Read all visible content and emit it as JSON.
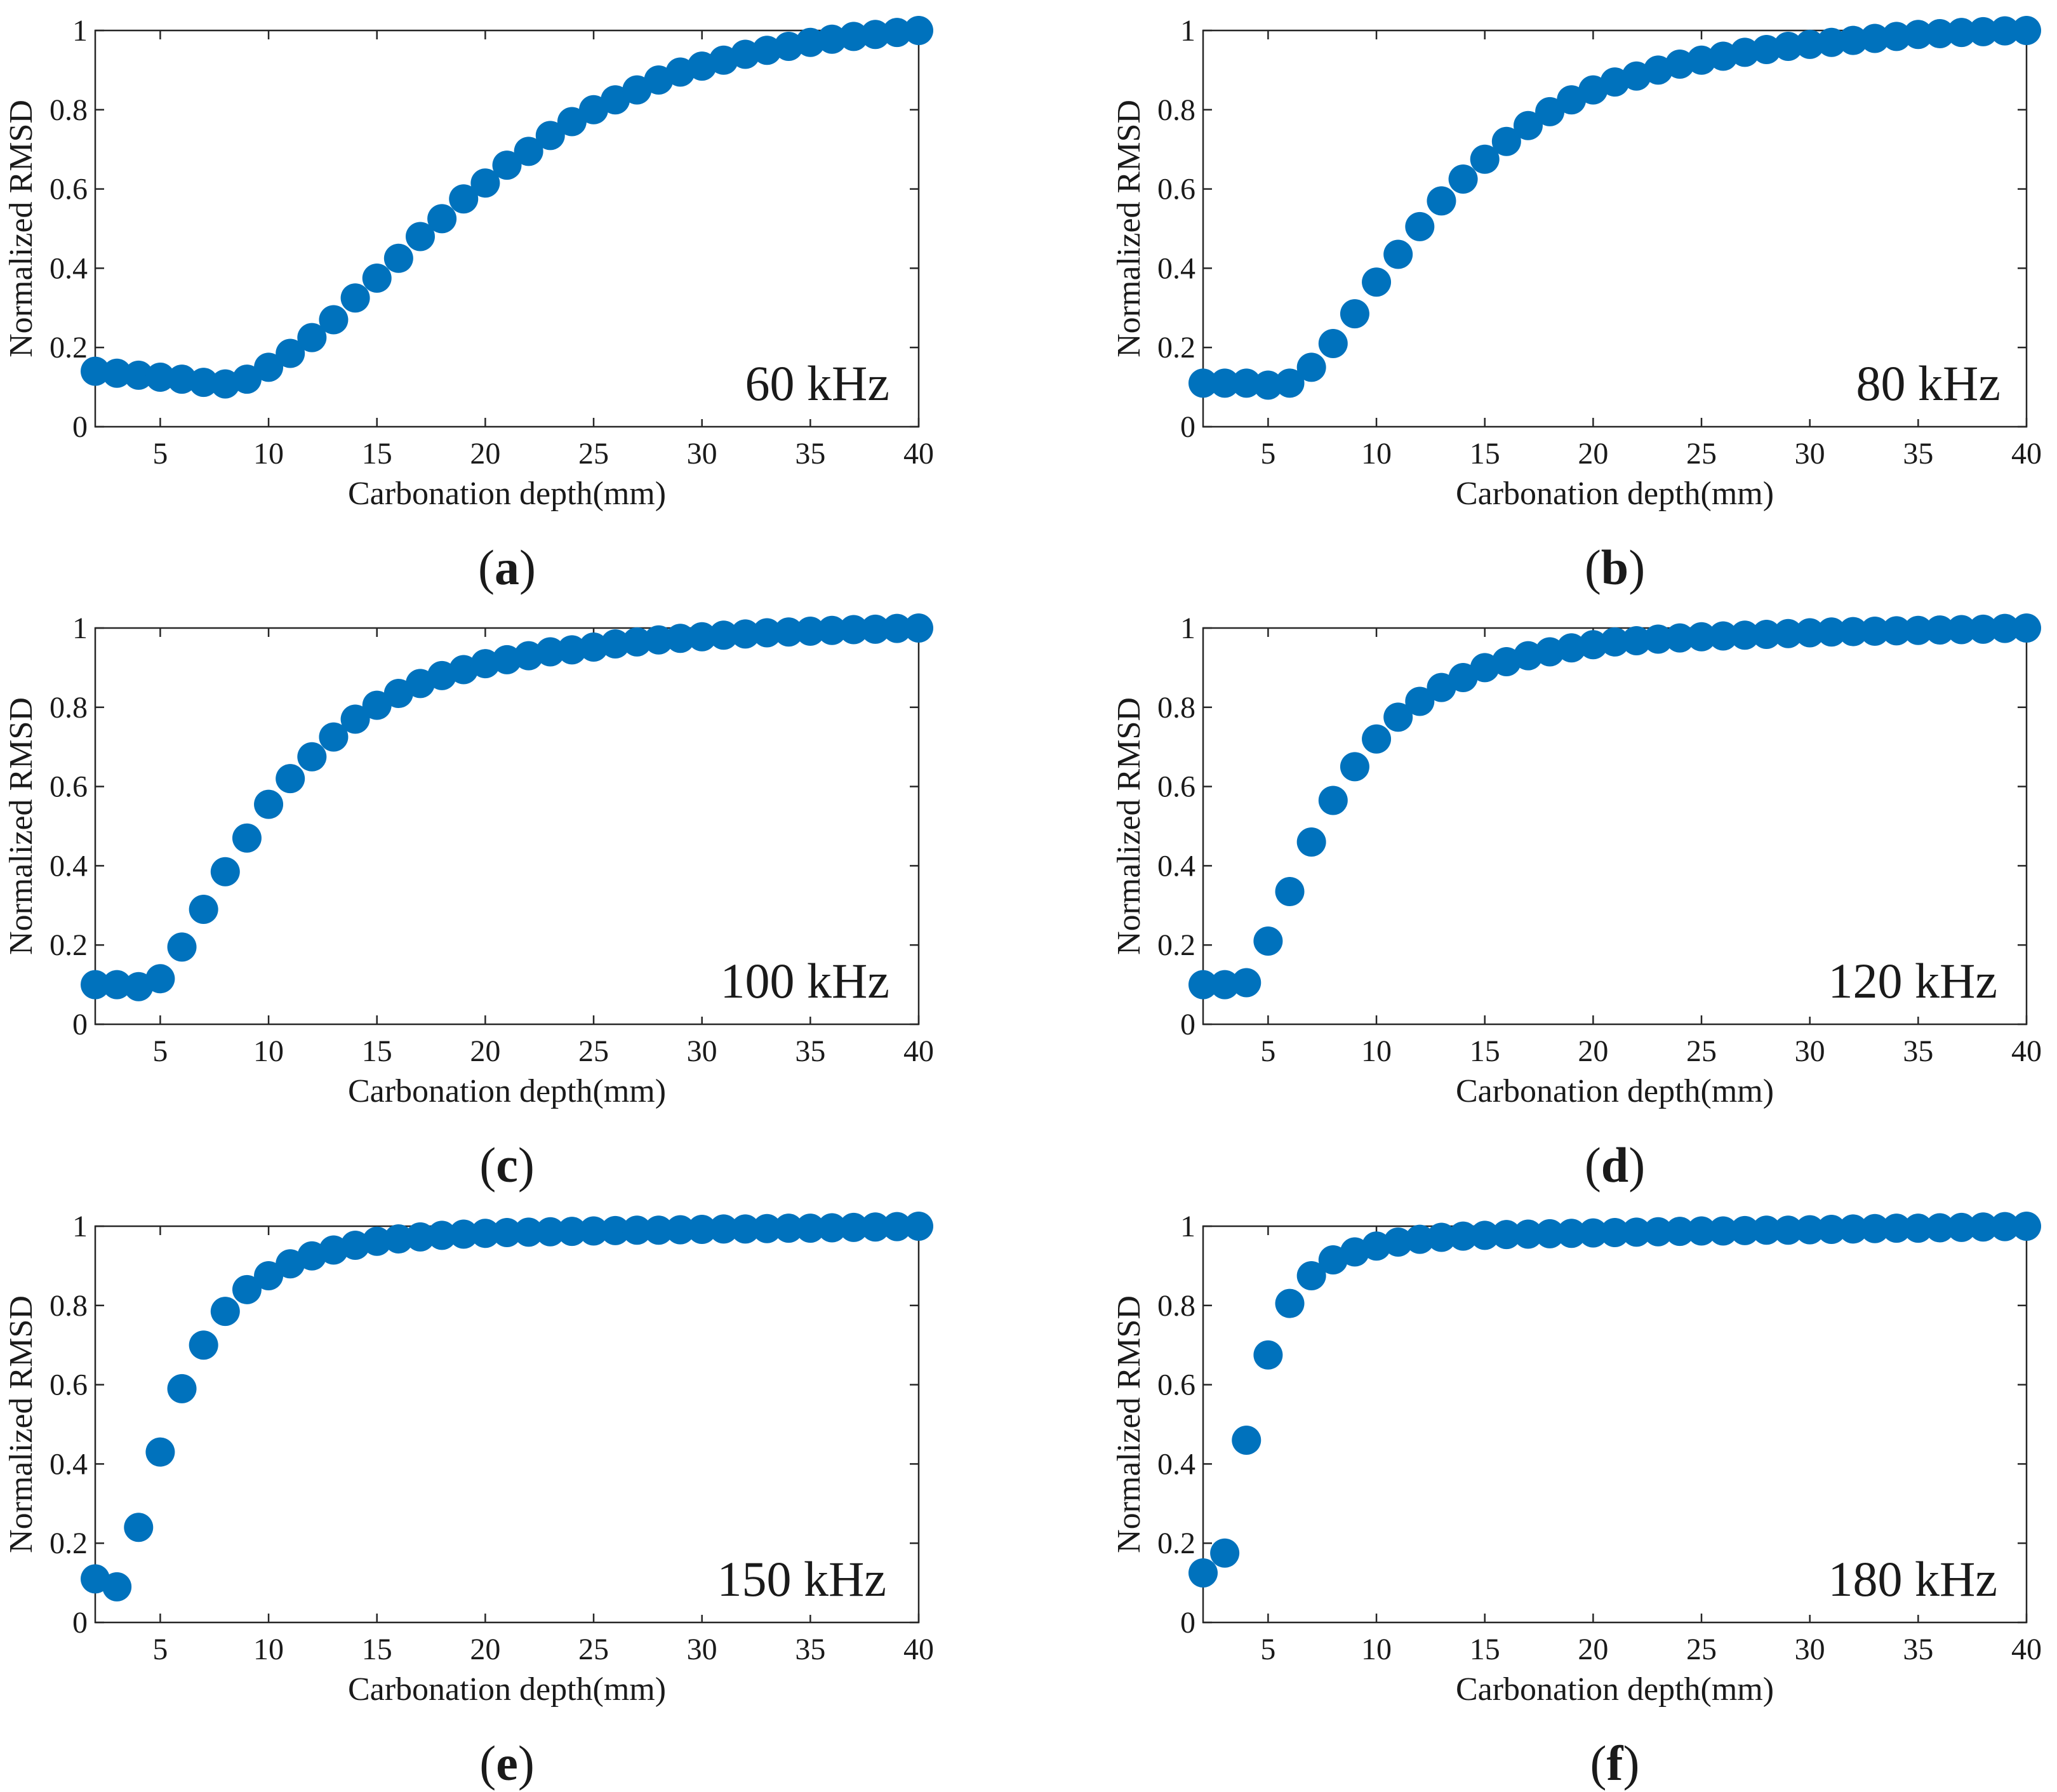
{
  "chart_data": [
    {
      "type": "scatter",
      "panel": "(a)",
      "panel_letter": "a",
      "annotation": "60 kHz",
      "xlabel": "Carbonation depth(mm)",
      "ylabel": "Normalized RMSD",
      "xlim": [
        2,
        40
      ],
      "ylim": [
        0,
        1
      ],
      "xticks": [
        5,
        10,
        15,
        20,
        25,
        30,
        35,
        40
      ],
      "yticks": [
        0,
        0.2,
        0.4,
        0.6,
        0.8,
        1
      ],
      "ytick_labels": [
        "0",
        "0.2",
        "0.4",
        "0.6",
        "0.8",
        "1"
      ],
      "marker_color": "#0072BD",
      "x": [
        2,
        3,
        4,
        5,
        6,
        7,
        8,
        9,
        10,
        11,
        12,
        13,
        14,
        15,
        16,
        17,
        18,
        19,
        20,
        21,
        22,
        23,
        24,
        25,
        26,
        27,
        28,
        29,
        30,
        31,
        32,
        33,
        34,
        35,
        36,
        37,
        38,
        39,
        40
      ],
      "y": [
        0.14,
        0.135,
        0.13,
        0.125,
        0.12,
        0.112,
        0.108,
        0.12,
        0.15,
        0.185,
        0.225,
        0.27,
        0.325,
        0.375,
        0.425,
        0.48,
        0.525,
        0.575,
        0.615,
        0.66,
        0.695,
        0.735,
        0.77,
        0.8,
        0.825,
        0.85,
        0.875,
        0.895,
        0.91,
        0.925,
        0.94,
        0.95,
        0.96,
        0.97,
        0.978,
        0.985,
        0.99,
        0.995,
        1.0
      ]
    },
    {
      "type": "scatter",
      "panel": "(b)",
      "panel_letter": "b",
      "annotation": "80 kHz",
      "xlabel": "Carbonation depth(mm)",
      "ylabel": "Normalized RMSD",
      "xlim": [
        2,
        40
      ],
      "ylim": [
        0,
        1
      ],
      "xticks": [
        5,
        10,
        15,
        20,
        25,
        30,
        35,
        40
      ],
      "yticks": [
        0,
        0.2,
        0.4,
        0.6,
        0.8,
        1
      ],
      "ytick_labels": [
        "0",
        "0.2",
        "0.4",
        "0.6",
        "0.8",
        "1"
      ],
      "marker_color": "#0072BD",
      "x": [
        2,
        3,
        4,
        5,
        6,
        7,
        8,
        9,
        10,
        11,
        12,
        13,
        14,
        15,
        16,
        17,
        18,
        19,
        20,
        21,
        22,
        23,
        24,
        25,
        26,
        27,
        28,
        29,
        30,
        31,
        32,
        33,
        34,
        35,
        36,
        37,
        38,
        39,
        40
      ],
      "y": [
        0.11,
        0.11,
        0.11,
        0.105,
        0.11,
        0.15,
        0.21,
        0.285,
        0.365,
        0.435,
        0.505,
        0.57,
        0.625,
        0.675,
        0.72,
        0.76,
        0.795,
        0.825,
        0.85,
        0.87,
        0.885,
        0.9,
        0.915,
        0.925,
        0.935,
        0.945,
        0.952,
        0.96,
        0.965,
        0.97,
        0.975,
        0.98,
        0.985,
        0.99,
        0.992,
        0.995,
        0.997,
        0.999,
        1.0
      ]
    },
    {
      "type": "scatter",
      "panel": "(c)",
      "panel_letter": "c",
      "annotation": "100 kHz",
      "xlabel": "Carbonation depth(mm)",
      "ylabel": "Normalized RMSD",
      "xlim": [
        2,
        40
      ],
      "ylim": [
        0,
        1
      ],
      "xticks": [
        5,
        10,
        15,
        20,
        25,
        30,
        35,
        40
      ],
      "yticks": [
        0,
        0.2,
        0.4,
        0.6,
        0.8,
        1
      ],
      "ytick_labels": [
        "0",
        "0.2",
        "0.4",
        "0.6",
        "0.8",
        "1"
      ],
      "marker_color": "#0072BD",
      "x": [
        2,
        3,
        4,
        5,
        6,
        7,
        8,
        9,
        10,
        11,
        12,
        13,
        14,
        15,
        16,
        17,
        18,
        19,
        20,
        21,
        22,
        23,
        24,
        25,
        26,
        27,
        28,
        29,
        30,
        31,
        32,
        33,
        34,
        35,
        36,
        37,
        38,
        39,
        40
      ],
      "y": [
        0.1,
        0.1,
        0.095,
        0.115,
        0.195,
        0.29,
        0.385,
        0.47,
        0.555,
        0.62,
        0.675,
        0.725,
        0.77,
        0.805,
        0.835,
        0.86,
        0.88,
        0.895,
        0.91,
        0.92,
        0.93,
        0.94,
        0.945,
        0.952,
        0.96,
        0.965,
        0.97,
        0.974,
        0.978,
        0.982,
        0.985,
        0.988,
        0.99,
        0.992,
        0.994,
        0.996,
        0.997,
        0.999,
        1.0
      ]
    },
    {
      "type": "scatter",
      "panel": "(d)",
      "panel_letter": "d",
      "annotation": "120 kHz",
      "xlabel": "Carbonation depth(mm)",
      "ylabel": "Normalized RMSD",
      "xlim": [
        2,
        40
      ],
      "ylim": [
        0,
        1
      ],
      "xticks": [
        5,
        10,
        15,
        20,
        25,
        30,
        35,
        40
      ],
      "yticks": [
        0,
        0.2,
        0.4,
        0.6,
        0.8,
        1
      ],
      "ytick_labels": [
        "0",
        "0.2",
        "0.4",
        "0.6",
        "0.8",
        "1"
      ],
      "marker_color": "#0072BD",
      "x": [
        2,
        3,
        4,
        5,
        6,
        7,
        8,
        9,
        10,
        11,
        12,
        13,
        14,
        15,
        16,
        17,
        18,
        19,
        20,
        21,
        22,
        23,
        24,
        25,
        26,
        27,
        28,
        29,
        30,
        31,
        32,
        33,
        34,
        35,
        36,
        37,
        38,
        39,
        40
      ],
      "y": [
        0.1,
        0.1,
        0.105,
        0.21,
        0.335,
        0.46,
        0.565,
        0.65,
        0.72,
        0.775,
        0.815,
        0.85,
        0.875,
        0.9,
        0.915,
        0.93,
        0.94,
        0.95,
        0.958,
        0.965,
        0.968,
        0.972,
        0.975,
        0.978,
        0.98,
        0.982,
        0.984,
        0.986,
        0.988,
        0.99,
        0.991,
        0.992,
        0.993,
        0.994,
        0.995,
        0.996,
        0.997,
        0.999,
        1.0
      ]
    },
    {
      "type": "scatter",
      "panel": "(e)",
      "panel_letter": "e",
      "annotation": "150 kHz",
      "xlabel": "Carbonation depth(mm)",
      "ylabel": "Normalized RMSD",
      "xlim": [
        2,
        40
      ],
      "ylim": [
        0,
        1
      ],
      "xticks": [
        5,
        10,
        15,
        20,
        25,
        30,
        35,
        40
      ],
      "yticks": [
        0,
        0.2,
        0.4,
        0.6,
        0.8,
        1
      ],
      "ytick_labels": [
        "0",
        "0.2",
        "0.4",
        "0.6",
        "0.8",
        "1"
      ],
      "marker_color": "#0072BD",
      "x": [
        2,
        3,
        4,
        5,
        6,
        7,
        8,
        9,
        10,
        11,
        12,
        13,
        14,
        15,
        16,
        17,
        18,
        19,
        20,
        21,
        22,
        23,
        24,
        25,
        26,
        27,
        28,
        29,
        30,
        31,
        32,
        33,
        34,
        35,
        36,
        37,
        38,
        39,
        40
      ],
      "y": [
        0.11,
        0.09,
        0.24,
        0.43,
        0.59,
        0.7,
        0.785,
        0.84,
        0.875,
        0.905,
        0.925,
        0.94,
        0.952,
        0.962,
        0.968,
        0.973,
        0.977,
        0.98,
        0.982,
        0.984,
        0.985,
        0.986,
        0.987,
        0.988,
        0.989,
        0.99,
        0.99,
        0.991,
        0.992,
        0.993,
        0.993,
        0.994,
        0.995,
        0.995,
        0.996,
        0.997,
        0.998,
        0.999,
        1.0
      ]
    },
    {
      "type": "scatter",
      "panel": "(f)",
      "panel_letter": "f",
      "annotation": "180 kHz",
      "xlabel": "Carbonation depth(mm)",
      "ylabel": "Normalized RMSD",
      "xlim": [
        2,
        40
      ],
      "ylim": [
        0,
        1
      ],
      "xticks": [
        5,
        10,
        15,
        20,
        25,
        30,
        35,
        40
      ],
      "yticks": [
        0,
        0.2,
        0.4,
        0.6,
        0.8,
        1
      ],
      "ytick_labels": [
        "0",
        "0.2",
        "0.4",
        "0.6",
        "0.8",
        "1"
      ],
      "marker_color": "#0072BD",
      "x": [
        2,
        3,
        4,
        5,
        6,
        7,
        8,
        9,
        10,
        11,
        12,
        13,
        14,
        15,
        16,
        17,
        18,
        19,
        20,
        21,
        22,
        23,
        24,
        25,
        26,
        27,
        28,
        29,
        30,
        31,
        32,
        33,
        34,
        35,
        36,
        37,
        38,
        39,
        40
      ],
      "y": [
        0.125,
        0.175,
        0.46,
        0.675,
        0.805,
        0.875,
        0.915,
        0.935,
        0.95,
        0.96,
        0.967,
        0.972,
        0.975,
        0.977,
        0.979,
        0.98,
        0.981,
        0.982,
        0.983,
        0.984,
        0.985,
        0.986,
        0.987,
        0.988,
        0.988,
        0.989,
        0.99,
        0.99,
        0.991,
        0.992,
        0.993,
        0.994,
        0.995,
        0.995,
        0.996,
        0.997,
        0.998,
        0.999,
        1.0
      ]
    }
  ]
}
